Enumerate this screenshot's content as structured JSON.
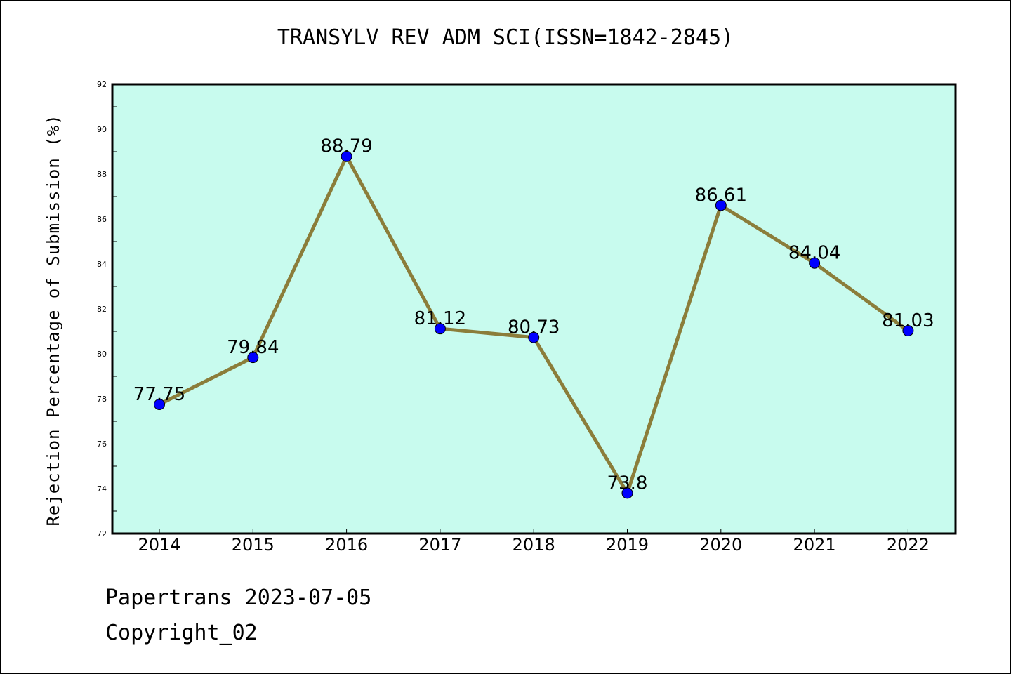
{
  "title": "TRANSYLV REV ADM SCI(ISSN=1842-2845)",
  "footer": {
    "line1": "Papertrans 2023-07-05",
    "line2": "Copyright_02"
  },
  "colors": {
    "plot_background": "#c8fbee",
    "line": "#8b7d3a",
    "marker": "#0000ff"
  },
  "chart_data": {
    "type": "line",
    "title": "TRANSYLV REV ADM SCI(ISSN=1842-2845)",
    "xlabel": "",
    "ylabel": "Rejection Percentage of Submission (%)",
    "categories": [
      "2014",
      "2015",
      "2016",
      "2017",
      "2018",
      "2019",
      "2020",
      "2021",
      "2022"
    ],
    "values": [
      77.75,
      79.84,
      88.79,
      81.12,
      80.73,
      73.8,
      86.61,
      84.04,
      81.03
    ],
    "data_labels": [
      "77.75",
      "79.84",
      "88.79",
      "81.12",
      "80.73",
      "73.8",
      "86.61",
      "84.04",
      "81.03"
    ],
    "ylim": [
      72,
      92
    ],
    "yticks": [
      "72",
      "74",
      "76",
      "78",
      "80",
      "82",
      "84",
      "86",
      "88",
      "90",
      "92"
    ],
    "grid": false,
    "legend": "none"
  }
}
